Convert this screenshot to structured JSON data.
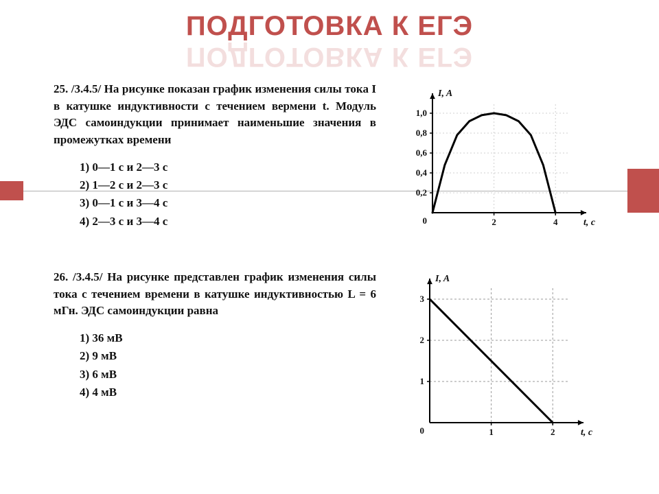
{
  "title": "ПОДГОТОВКА К ЕГЭ",
  "accent_color": "#c0504d",
  "problem25": {
    "number": "25.",
    "ref": "/3.4.5/",
    "text": "На рисунке показан график изменения силы тока I в катушке индуктивности с течением вермени t. Модуль ЭДС самоиндукции принимает наименьшие значения в промежутках времени",
    "options": [
      "1) 0—1 с и 2—3 с",
      "2) 1—2 с и 2—3 с",
      "3) 0—1 с и 3—4 с",
      "4) 2—3 с и 3—4 с"
    ],
    "chart": {
      "type": "line",
      "background_color": "#ffffff",
      "axis_color": "#000000",
      "grid_color": "#cfcfcf",
      "line_color": "#000000",
      "line_width": 3,
      "y_label": "I, A",
      "x_label": "t, c",
      "label_fontsize": 14,
      "tick_fontsize": 13,
      "xlim": [
        0,
        5
      ],
      "ylim": [
        0,
        1.2
      ],
      "x_ticks": [
        2,
        4
      ],
      "y_ticks": [
        0.2,
        0.4,
        0.6,
        0.8,
        1.0
      ],
      "y_tick_labels": [
        "0,2",
        "0,4",
        "0,6",
        "0,8",
        "1,0"
      ],
      "origin_label": "0",
      "data_points": [
        [
          0,
          0
        ],
        [
          0.4,
          0.48
        ],
        [
          0.8,
          0.78
        ],
        [
          1.2,
          0.92
        ],
        [
          1.6,
          0.98
        ],
        [
          2.0,
          1.0
        ],
        [
          2.4,
          0.98
        ],
        [
          2.8,
          0.92
        ],
        [
          3.2,
          0.78
        ],
        [
          3.6,
          0.48
        ],
        [
          4.0,
          0
        ]
      ]
    }
  },
  "problem26": {
    "number": "26.",
    "ref": "/3.4.5/",
    "text": "На рисунке представлен график изменения силы тока с течением времени в катушке индуктивностью L = 6 мГн. ЭДС самоиндукции равна",
    "options": [
      "1) 36 мВ",
      "2) 9 мВ",
      "3) 6 мВ",
      "4) 4 мВ"
    ],
    "chart": {
      "type": "line",
      "background_color": "#ffffff",
      "axis_color": "#000000",
      "grid_color": "#9a9a9a",
      "line_color": "#000000",
      "line_width": 3,
      "y_label": "I, A",
      "x_label": "t, c",
      "label_fontsize": 14,
      "tick_fontsize": 13,
      "xlim": [
        0,
        2.5
      ],
      "ylim": [
        0,
        3.5
      ],
      "x_ticks": [
        1,
        2
      ],
      "y_ticks": [
        1,
        2,
        3
      ],
      "origin_label": "0",
      "data_points": [
        [
          0,
          3
        ],
        [
          2,
          0
        ]
      ]
    }
  }
}
